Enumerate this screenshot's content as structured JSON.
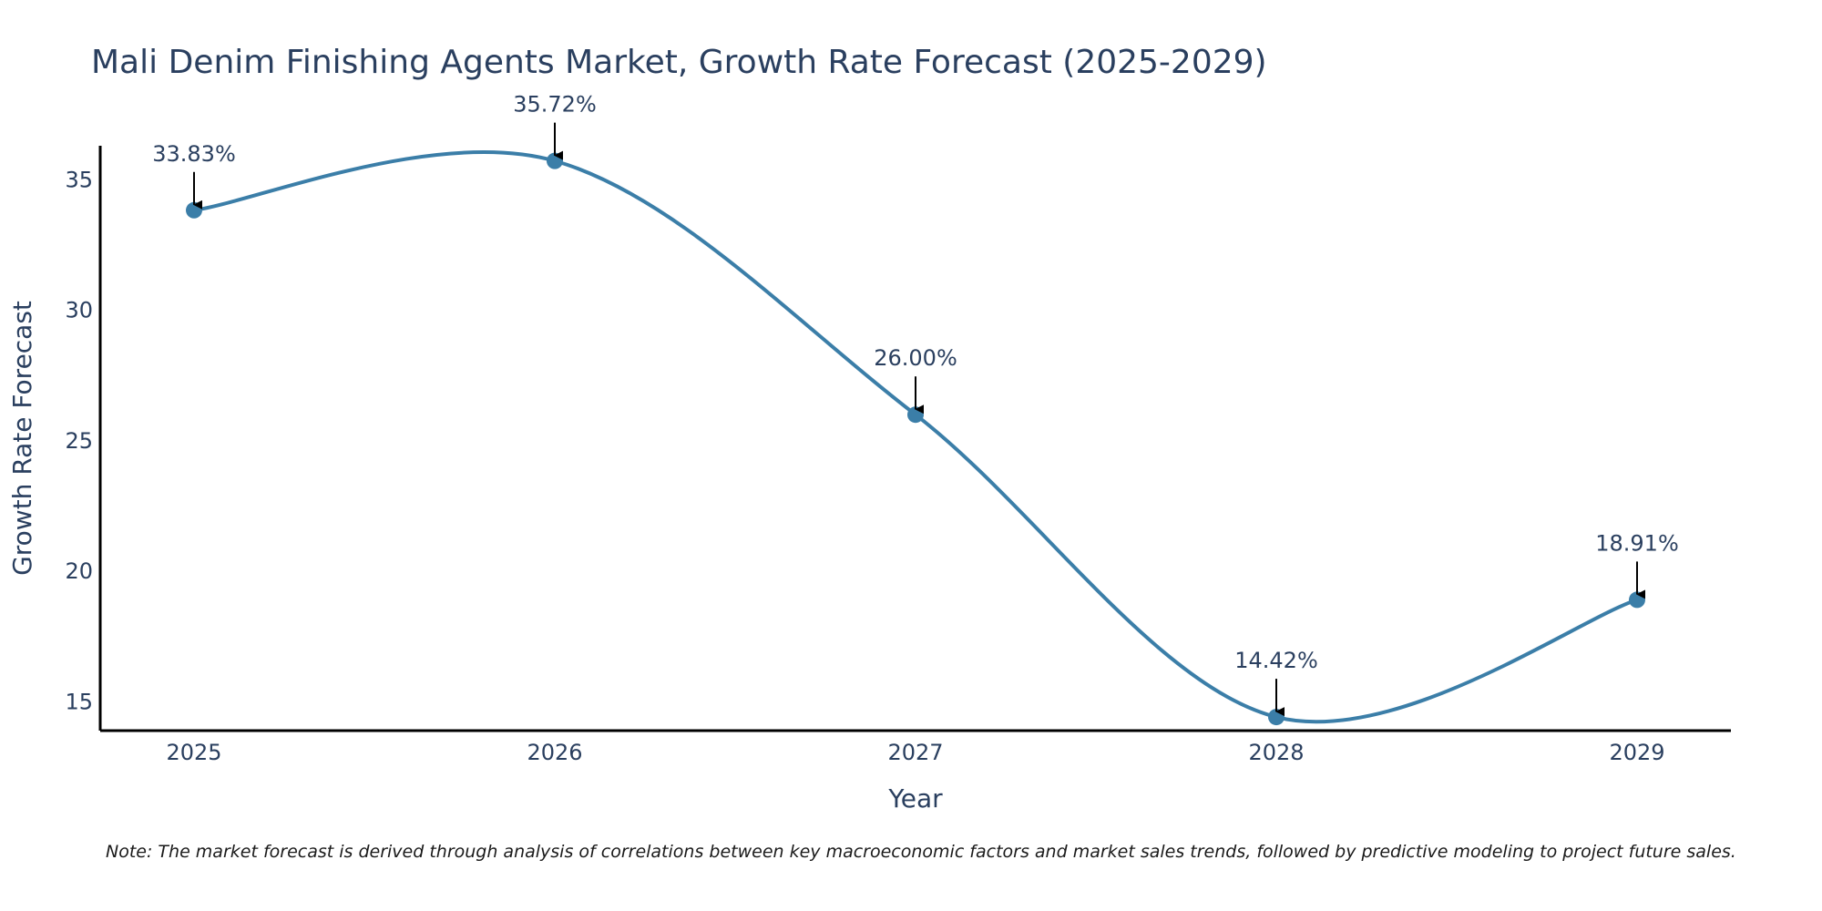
{
  "chart_data": {
    "type": "line",
    "title": "Mali Denim Finishing Agents Market, Growth Rate Forecast (2025-2029)",
    "xlabel": "Year",
    "ylabel": "Growth Rate Forecast",
    "categories": [
      "2025",
      "2026",
      "2027",
      "2028",
      "2029"
    ],
    "values": [
      33.83,
      35.72,
      26.0,
      14.42,
      18.91
    ],
    "data_labels": [
      "33.83%",
      "35.72%",
      "26.00%",
      "14.42%",
      "18.91%"
    ],
    "y_ticks": [
      15,
      20,
      25,
      30,
      35
    ],
    "ylim": [
      13.9,
      36.3
    ],
    "line_color": "#3b7ea8",
    "marker_color": "#3b7ea8",
    "annotation_arrow_color": "#000000",
    "grid": false,
    "note": "Note: The market forecast is derived through analysis of correlations between key macroeconomic factors and market sales trends, followed by predictive modeling to project future sales."
  }
}
